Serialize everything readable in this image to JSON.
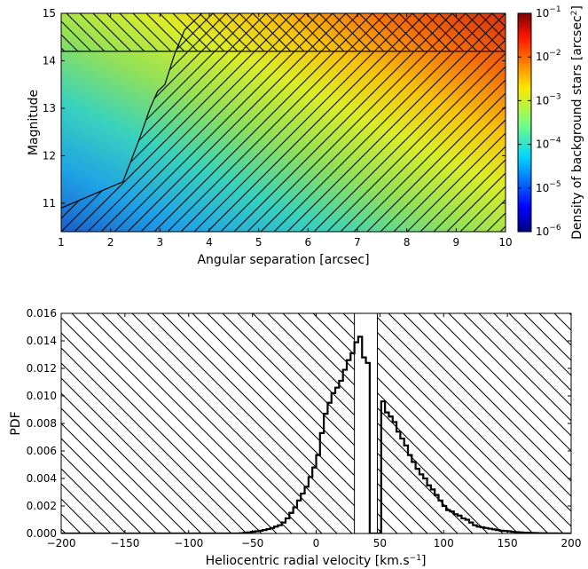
{
  "chart_data": [
    {
      "type": "heatmap",
      "title": "",
      "xlabel": "Angular separation [arcsec]",
      "ylabel": "Magnitude",
      "xlim": [
        1,
        10
      ],
      "ylim": [
        10.4,
        15
      ],
      "xticks": [
        "1",
        "2",
        "3",
        "4",
        "5",
        "6",
        "7",
        "8",
        "9",
        "10"
      ],
      "yticks": [
        "11",
        "12",
        "13",
        "14",
        "15"
      ],
      "colorbar": {
        "label": "Density of background stars [arcsec",
        "label_sup": "2",
        "label_end": "]",
        "scale": "log",
        "range": [
          1e-06,
          0.1
        ],
        "tick_base": "10",
        "tick_exponents": [
          "−1",
          "−2",
          "−3",
          "−4",
          "−5",
          "−6"
        ],
        "colormap": "jet"
      },
      "hatched_regions": {
        "detection_limit_curve": {
          "x": [
            1.0,
            2.25,
            2.6,
            2.8,
            2.95,
            3.1,
            3.3,
            3.5,
            3.85
          ],
          "y": [
            10.9,
            11.45,
            12.4,
            13.0,
            13.35,
            13.5,
            14.15,
            14.65,
            15.0
          ]
        },
        "magnitude_cut": 14.2
      }
    },
    {
      "type": "line",
      "title": "",
      "xlabel": "Heliocentric radial velocity [km.s",
      "xlabel_sup": "−1",
      "xlabel_end": "]",
      "ylabel": "PDF",
      "xlim": [
        -200,
        200
      ],
      "ylim": [
        0,
        0.016
      ],
      "xticks": [
        "−200",
        "−150",
        "−100",
        "−50",
        "0",
        "50",
        "100",
        "150",
        "200"
      ],
      "yticks": [
        "0.000",
        "0.002",
        "0.004",
        "0.006",
        "0.008",
        "0.010",
        "0.012",
        "0.014",
        "0.016"
      ],
      "excluded_band": [
        30,
        48
      ],
      "series": [
        {
          "step_width": 3,
          "x": [
            -60,
            -57,
            -54,
            -51,
            -48,
            -45,
            -42,
            -39,
            -36,
            -33,
            -30,
            -27,
            -24,
            -21,
            -18,
            -15,
            -12,
            -9,
            -6,
            -3,
            0,
            3,
            6,
            9,
            12,
            15,
            18,
            21,
            24,
            27,
            30,
            33,
            36,
            39,
            42,
            45,
            48,
            51,
            54,
            57,
            60,
            63,
            66,
            69,
            72,
            75,
            78,
            81,
            84,
            87,
            90,
            93,
            96,
            99,
            102,
            105,
            108,
            111,
            114,
            117,
            120,
            123,
            126,
            129,
            132,
            135,
            138,
            141,
            144,
            147,
            150,
            153,
            156,
            159,
            162,
            165,
            168,
            171,
            174,
            177,
            180,
            183,
            186,
            189,
            192,
            195,
            198
          ],
          "values": [
            2e-05,
            5e-05,
            8e-05,
            0.00012,
            0.00016,
            0.0002,
            0.00025,
            0.00032,
            0.0004,
            0.0005,
            0.0006,
            0.0008,
            0.0011,
            0.0015,
            0.0019,
            0.0024,
            0.0029,
            0.0034,
            0.0041,
            0.0048,
            0.0057,
            0.0073,
            0.0087,
            0.0095,
            0.0102,
            0.0106,
            0.0111,
            0.0119,
            0.0126,
            0.0131,
            0.0139,
            0.0143,
            0.0128,
            0.0124,
            0.0,
            0.0,
            0.0,
            0.0096,
            0.0088,
            0.0085,
            0.0081,
            0.0074,
            0.0069,
            0.0064,
            0.0057,
            0.0052,
            0.0047,
            0.0043,
            0.004,
            0.0035,
            0.0032,
            0.0028,
            0.0024,
            0.002,
            0.0017,
            0.0016,
            0.0014,
            0.0013,
            0.0011,
            0.001,
            0.0008,
            0.0006,
            0.0005,
            0.00045,
            0.0004,
            0.00035,
            0.0003,
            0.00025,
            0.0002,
            0.00018,
            0.00016,
            0.00012,
            0.0001,
            8e-05,
            6e-05,
            5e-05,
            4e-05,
            3e-05,
            2e-05,
            2e-05,
            1e-05,
            1e-05,
            1e-05,
            0.0,
            0.0,
            0.0,
            0.0
          ]
        }
      ]
    }
  ]
}
